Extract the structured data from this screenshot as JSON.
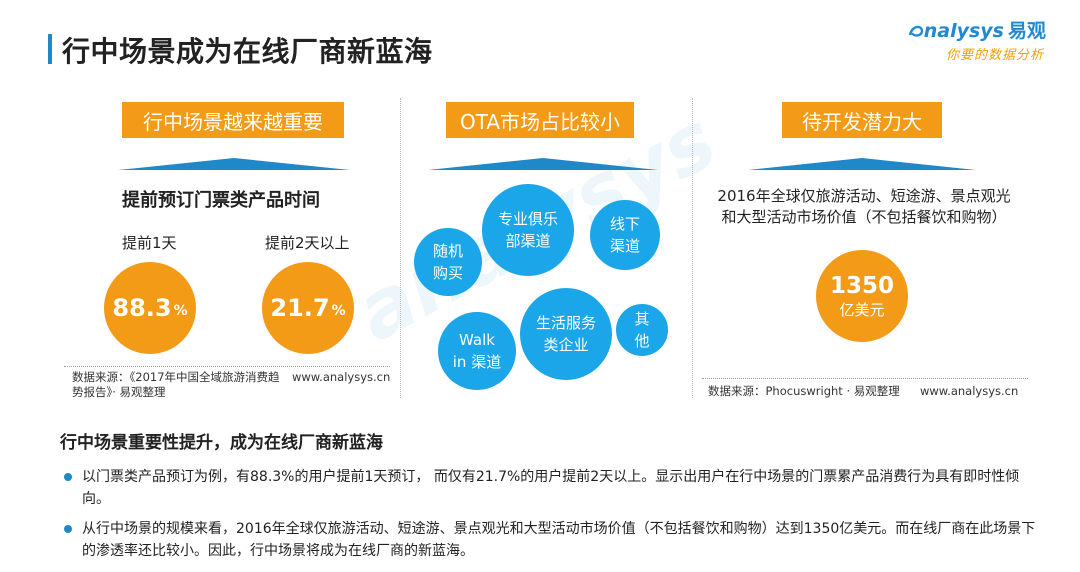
{
  "header": {
    "title": "行中场景成为在线厂商新蓝海",
    "logo_text": "nalysys",
    "logo_cn": "易观",
    "logo_sub": "你要的数据分析"
  },
  "panel1": {
    "label": "行中场景越来越重要",
    "heading": "提前预订门票类产品时间",
    "items": [
      {
        "label": "提前1天",
        "value": "88.3",
        "unit": "%"
      },
      {
        "label": "提前2天以上",
        "value": "21.7",
        "unit": "%"
      }
    ],
    "source_left": "数据来源：《2017年中国全域旅游消费趋势报告》· 易观整理",
    "source_right": "www.analysys.cn"
  },
  "panel2": {
    "label": "OTA市场占比较小",
    "bubbles": [
      "专业俱乐部渠道",
      "线下渠道",
      "随机购买",
      "生活服务类企业",
      "其他",
      "Walk in 渠道"
    ]
  },
  "panel3": {
    "label": "待开发潜力大",
    "description_line1": "2016年全球仅旅游活动、短途游、景点观光",
    "description_line2": "和大型活动市场价值（不包括餐饮和购物）",
    "value": "1350",
    "unit": "亿美元",
    "source_left": "数据来源：Phocuswright · 易观整理",
    "source_right": "www.analysys.cn"
  },
  "summary": {
    "title": "行中场景重要性提升，成为在线厂商新蓝海",
    "bullets": [
      "以门票类产品预订为例，有88.3%的用户提前1天预订， 而仅有21.7%的用户提前2天以上。显示出用户在行中场景的门票累产品消费行为具有即时性倾向。",
      "从行中场景的规模来看，2016年全球仅旅游活动、短途游、景点观光和大型活动市场价值（不包括餐饮和购物）达到1350亿美元。而在线厂商在此场景下的渗透率还比较小。因此，行中场景将成为在线厂商的新蓝海。"
    ]
  },
  "colors": {
    "orange": "#f39a16",
    "blue": "#1aa6e8",
    "accent": "#1e88c8"
  }
}
